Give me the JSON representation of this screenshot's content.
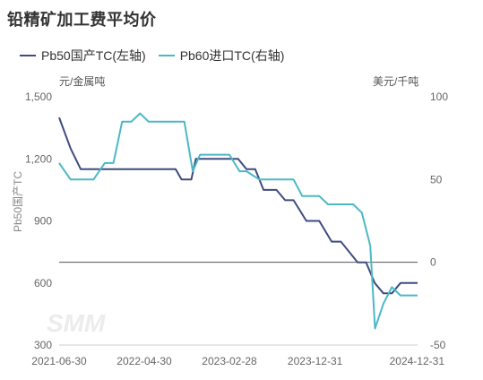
{
  "title": "铅精矿加工费平均价",
  "watermark": "SMM",
  "legend": [
    {
      "label": "Pb50国产TC(左轴)",
      "color": "#3f4b7f"
    },
    {
      "label": "Pb60进口TC(右轴)",
      "color": "#4bb8c6"
    }
  ],
  "units": {
    "left": "元/金属吨",
    "right": "美元/千吨"
  },
  "chart_data": {
    "type": "line",
    "title": "铅精矿加工费平均价",
    "ylabel": "Pb50国产TC",
    "y_left": {
      "range": [
        300,
        1500
      ],
      "ticks": [
        300,
        600,
        900,
        1200,
        1500
      ],
      "tick_labels": [
        "300",
        "600",
        "900",
        "1,200",
        "1,500"
      ]
    },
    "y_right": {
      "range": [
        -50,
        100
      ],
      "ticks": [
        -50,
        0,
        50,
        100
      ],
      "tick_labels": [
        "-50",
        "0",
        "50",
        "100"
      ]
    },
    "x_ticks": [
      "2021-06-30",
      "2022-04-30",
      "2023-02-28",
      "2023-12-31",
      "2024-12-31"
    ],
    "x_range": [
      "2021-06-30",
      "2024-12-31"
    ],
    "series": [
      {
        "name": "Pb50国产TC(左轴)",
        "axis": "left",
        "color": "#3f4b7f",
        "points": [
          [
            "2021-06-30",
            1400
          ],
          [
            "2021-08-10",
            1250
          ],
          [
            "2021-09-15",
            1150
          ],
          [
            "2021-10-31",
            1150
          ],
          [
            "2021-12-31",
            1150
          ],
          [
            "2022-03-31",
            1150
          ],
          [
            "2022-06-30",
            1150
          ],
          [
            "2022-08-20",
            1150
          ],
          [
            "2022-09-10",
            1100
          ],
          [
            "2022-10-15",
            1100
          ],
          [
            "2022-10-31",
            1200
          ],
          [
            "2022-12-31",
            1200
          ],
          [
            "2023-01-31",
            1200
          ],
          [
            "2023-03-31",
            1200
          ],
          [
            "2023-04-30",
            1150
          ],
          [
            "2023-05-31",
            1150
          ],
          [
            "2023-06-30",
            1050
          ],
          [
            "2023-08-15",
            1050
          ],
          [
            "2023-09-15",
            1000
          ],
          [
            "2023-10-15",
            1000
          ],
          [
            "2023-11-30",
            900
          ],
          [
            "2024-01-15",
            900
          ],
          [
            "2024-02-28",
            800
          ],
          [
            "2024-04-01",
            800
          ],
          [
            "2024-05-31",
            700
          ],
          [
            "2024-06-30",
            700
          ],
          [
            "2024-07-31",
            600
          ],
          [
            "2024-08-31",
            550
          ],
          [
            "2024-09-30",
            550
          ],
          [
            "2024-10-31",
            600
          ],
          [
            "2024-12-31",
            600
          ]
        ]
      },
      {
        "name": "Pb60进口TC(右轴)",
        "axis": "right",
        "color": "#4bb8c6",
        "points": [
          [
            "2021-06-30",
            60
          ],
          [
            "2021-08-10",
            50
          ],
          [
            "2021-10-31",
            50
          ],
          [
            "2021-12-10",
            60
          ],
          [
            "2022-01-10",
            60
          ],
          [
            "2022-02-10",
            85
          ],
          [
            "2022-03-15",
            85
          ],
          [
            "2022-04-15",
            90
          ],
          [
            "2022-05-15",
            85
          ],
          [
            "2022-09-20",
            85
          ],
          [
            "2022-10-20",
            55
          ],
          [
            "2022-11-15",
            65
          ],
          [
            "2023-02-28",
            65
          ],
          [
            "2023-04-05",
            55
          ],
          [
            "2023-04-30",
            55
          ],
          [
            "2023-06-15",
            50
          ],
          [
            "2023-08-15",
            50
          ],
          [
            "2023-10-15",
            50
          ],
          [
            "2023-11-15",
            40
          ],
          [
            "2024-01-15",
            40
          ],
          [
            "2024-02-15",
            35
          ],
          [
            "2024-05-15",
            35
          ],
          [
            "2024-06-15",
            30
          ],
          [
            "2024-07-15",
            10
          ],
          [
            "2024-08-01",
            -40
          ],
          [
            "2024-08-31",
            -25
          ],
          [
            "2024-09-30",
            -15
          ],
          [
            "2024-10-31",
            -20
          ],
          [
            "2024-11-15",
            -20
          ],
          [
            "2024-12-31",
            -20
          ]
        ]
      }
    ]
  }
}
